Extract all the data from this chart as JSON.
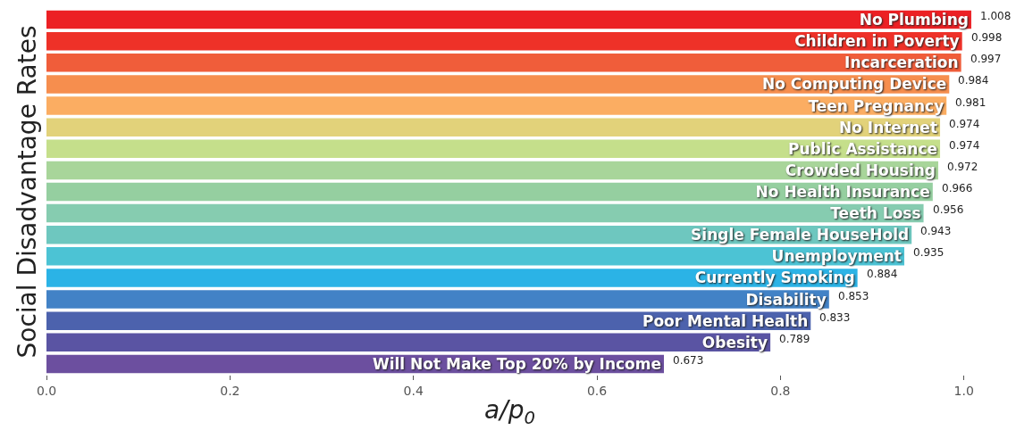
{
  "chart_data": {
    "type": "bar",
    "orientation": "horizontal",
    "ylabel": "Social Disadvantage Rates",
    "xlabel": "a/p$_{0}$",
    "categories": [
      "No Plumbing",
      "Children in Poverty",
      "Incarceration",
      "No Computing Device",
      "Teen Pregnancy",
      "No Internet",
      "Public Assistance",
      "Crowded Housing",
      "No Health Insurance",
      "Teeth Loss",
      "Single Female HouseHold",
      "Unemployment",
      "Currently Smoking",
      "Disability",
      "Poor Mental Health",
      "Obesity",
      "Will Not Make Top 20% by Income"
    ],
    "values": [
      1.008,
      0.998,
      0.997,
      0.984,
      0.981,
      0.974,
      0.974,
      0.972,
      0.966,
      0.956,
      0.943,
      0.935,
      0.884,
      0.853,
      0.833,
      0.789,
      0.673
    ],
    "colors": [
      "#ec2024",
      "#ee3128",
      "#f05d3a",
      "#f68e4e",
      "#fbad62",
      "#e2d27a",
      "#c5df8b",
      "#a8d59a",
      "#95cfa0",
      "#86ccb0",
      "#6ec7bf",
      "#4cc3d4",
      "#2bb3e6",
      "#4282c6",
      "#4c62ad",
      "#5a54a3",
      "#6c4f9f"
    ],
    "data_labels": true,
    "xlim": [
      0,
      1.01
    ],
    "xticks": [
      {
        "value": 0,
        "label": "0.0"
      },
      {
        "value": 0.2,
        "label": "0.2"
      },
      {
        "value": 0.4,
        "label": "0.4"
      },
      {
        "value": 0.6,
        "label": "0.6"
      },
      {
        "value": 0.8,
        "label": "0.8"
      },
      {
        "value": 1.0,
        "label": "1.0"
      }
    ],
    "tick_labels": "x"
  }
}
